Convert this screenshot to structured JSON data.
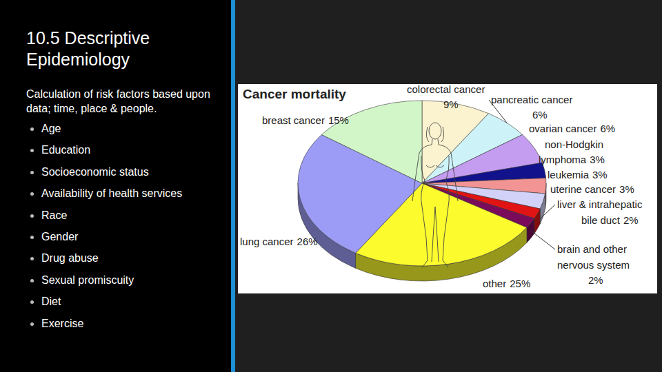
{
  "slide": {
    "title": "10.5 Descriptive Epidemiology",
    "subtitle": "Calculation of risk factors based upon data; time, place & people.",
    "bullets": [
      "Age",
      "Education",
      "Socioeconomic status",
      "Availability of health services",
      "Race",
      "Gender",
      "Drug abuse",
      "Sexual promiscuity",
      "Diet",
      "Exercise"
    ]
  },
  "chart_data": {
    "type": "pie",
    "title": "Cancer mortality",
    "categories": [
      "colorectal cancer",
      "pancreatic cancer",
      "ovarian cancer",
      "non-Hodgkin lymphoma",
      "leukemia",
      "uterine cancer",
      "liver & intrahepatic bile duct",
      "brain and other nervous system",
      "other",
      "lung cancer",
      "breast cancer"
    ],
    "values": [
      9,
      6,
      6,
      3,
      3,
      3,
      2,
      2,
      25,
      26,
      15
    ],
    "value_labels": [
      "9%",
      "6%",
      "6%",
      "3%",
      "3%",
      "3%",
      "2%",
      "2%",
      "25%",
      "26%",
      "15%"
    ],
    "colors": [
      "#fbf3cf",
      "#cdf3f8",
      "#c49cf0",
      "#12128c",
      "#f29494",
      "#d2d2f8",
      "#e01414",
      "#7a0a5a",
      "#fbfb2e",
      "#9c9cf6",
      "#d2f6c8"
    ],
    "data_labels": true
  }
}
